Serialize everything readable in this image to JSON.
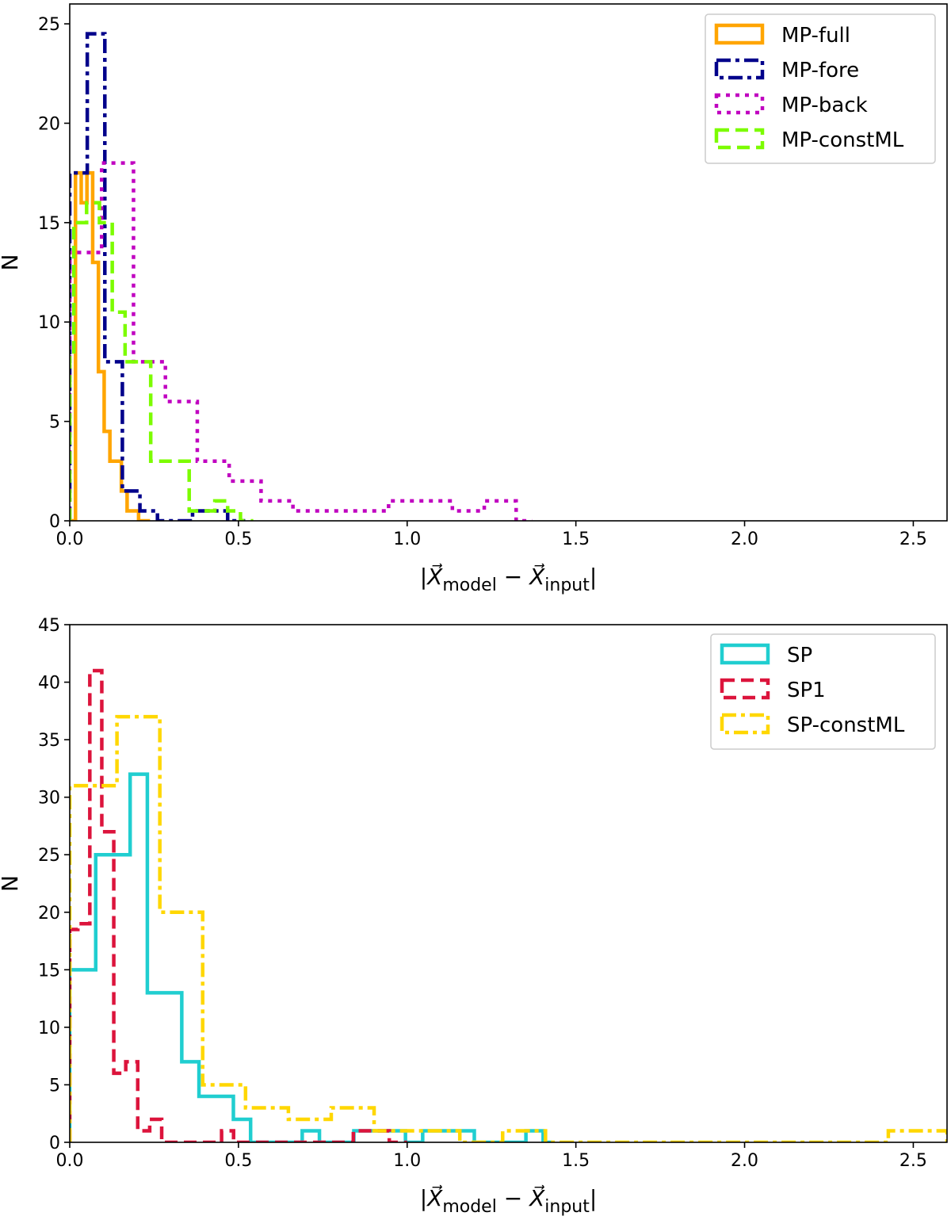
{
  "chart_data": [
    {
      "type": "histogram",
      "panel": "top",
      "xlabel": "|X_model − X_input|",
      "xlabel_parts": {
        "bar": "|",
        "vec": "X",
        "sub1": "model",
        "minus": "−",
        "sub2": "input"
      },
      "ylabel": "N",
      "xlim": [
        0,
        2.6
      ],
      "ylim": [
        0,
        26
      ],
      "xticks": [
        0.0,
        0.5,
        1.0,
        1.5,
        2.0,
        2.5
      ],
      "xtick_labels": [
        "0.0",
        "0.5",
        "1.0",
        "1.5",
        "2.0",
        "2.5"
      ],
      "yticks": [
        0,
        5,
        10,
        15,
        20,
        25
      ],
      "ytick_labels": [
        "0",
        "5",
        "10",
        "15",
        "20",
        "25"
      ],
      "legend_position": "top-right",
      "series": [
        {
          "name": "MP-full",
          "color": "#FFA500",
          "style": "solid",
          "edges": [
            0.0,
            0.017,
            0.034,
            0.051,
            0.068,
            0.085,
            0.102,
            0.119,
            0.136,
            0.153,
            0.17,
            0.187,
            0.204,
            0.221,
            0.238
          ],
          "counts": [
            0,
            17.5,
            16,
            17.5,
            13,
            7.5,
            4.5,
            3,
            3,
            1.5,
            0.5,
            0.5,
            0,
            0
          ]
        },
        {
          "name": "MP-fore",
          "color": "#00008B",
          "style": "dashdot",
          "edges": [
            0.0,
            0.052,
            0.104,
            0.156,
            0.208,
            0.26,
            0.312,
            0.364,
            0.416,
            0.468,
            0.52
          ],
          "counts": [
            17.5,
            24.5,
            8,
            1.5,
            0.5,
            0,
            0,
            0.5,
            0.5,
            0
          ],
          "extra_bars": [
            {
              "start": 0.0,
              "end": 0.012,
              "value": 17.5
            }
          ]
        },
        {
          "name": "MP-back",
          "color": "#C000C0",
          "style": "dotted",
          "edges": [
            0.0,
            0.0945,
            0.189,
            0.2835,
            0.378,
            0.4725,
            0.567,
            0.6615,
            0.756,
            0.8505,
            0.945,
            1.0395,
            1.134,
            1.2285,
            1.323,
            1.37
          ],
          "counts": [
            13.5,
            18,
            8,
            6,
            3,
            2,
            1,
            0.5,
            0.5,
            0.5,
            1,
            1,
            0.5,
            1,
            0
          ]
        },
        {
          "name": "MP-constML",
          "color": "#7CFC00",
          "style": "dashed",
          "edges": [
            0.0,
            0.012,
            0.05,
            0.088,
            0.126,
            0.164,
            0.202,
            0.24,
            0.278,
            0.316,
            0.354,
            0.392,
            0.43,
            0.468,
            0.506,
            0.544
          ],
          "counts": [
            8.5,
            15,
            16,
            15,
            10.5,
            8,
            8,
            3,
            3,
            3,
            0.5,
            0.5,
            1,
            0.5,
            0
          ],
          "extra_bars": [
            {
              "start": 0.0,
              "end": 0.012,
              "value": 8.5
            }
          ]
        }
      ]
    },
    {
      "type": "histogram",
      "panel": "bottom",
      "xlabel": "|X_model − X_input|",
      "xlabel_parts": {
        "bar": "|",
        "vec": "X",
        "sub1": "model",
        "minus": "−",
        "sub2": "input"
      },
      "ylabel": "N",
      "xlim": [
        0,
        2.6
      ],
      "ylim": [
        0,
        45
      ],
      "xticks": [
        0.0,
        0.5,
        1.0,
        1.5,
        2.0,
        2.5
      ],
      "xtick_labels": [
        "0.0",
        "0.5",
        "1.0",
        "1.5",
        "2.0",
        "2.5"
      ],
      "yticks": [
        0,
        5,
        10,
        15,
        20,
        25,
        30,
        35,
        40,
        45
      ],
      "ytick_labels": [
        "0",
        "5",
        "10",
        "15",
        "20",
        "25",
        "30",
        "35",
        "40",
        "45"
      ],
      "legend_position": "top-right",
      "series": [
        {
          "name": "SP",
          "color": "#20CED0",
          "style": "solid",
          "edges": [
            0.0,
            0.026,
            0.077,
            0.128,
            0.179,
            0.23,
            0.281,
            0.332,
            0.383,
            0.434,
            0.485,
            0.536,
            0.587,
            0.638,
            0.689,
            0.74,
            0.791,
            0.842,
            0.893,
            0.944,
            0.995,
            1.046,
            1.097,
            1.148,
            1.199,
            1.25,
            1.301,
            1.352,
            1.403,
            1.43
          ],
          "counts": [
            15,
            15,
            25,
            25,
            32,
            13,
            13,
            7,
            4,
            4,
            2,
            0,
            0,
            0,
            1,
            0,
            0,
            1,
            1,
            1,
            0,
            1,
            1,
            1,
            0,
            0,
            0,
            1,
            0
          ]
        },
        {
          "name": "SP1",
          "color": "#DC143C",
          "style": "dashed",
          "edges": [
            0.0,
            0.024,
            0.0595,
            0.095,
            0.1305,
            0.166,
            0.2015,
            0.237,
            0.2725,
            0.308,
            0.3435,
            0.379,
            0.4145,
            0.45,
            0.4855,
            0.521,
            0.5565,
            0.592,
            0.6275,
            0.663,
            0.6985,
            0.734,
            0.7695,
            0.805,
            0.8405,
            0.876,
            0.9115,
            0.947,
            0.9825,
            1.0
          ],
          "counts": [
            18.5,
            19,
            41,
            27,
            6,
            7,
            1,
            2,
            0,
            0,
            0,
            0,
            0,
            1,
            0,
            0,
            0,
            0,
            0,
            0,
            0,
            0,
            0,
            0,
            1,
            1,
            1,
            0,
            0
          ]
        },
        {
          "name": "SP-constML",
          "color": "#FFD700",
          "style": "dashdot",
          "edges": [
            0.0,
            0.013,
            0.14,
            0.267,
            0.394,
            0.521,
            0.648,
            0.775,
            0.902,
            1.029,
            1.156,
            1.283,
            1.41,
            1.537,
            1.664,
            1.791,
            1.918,
            2.045,
            2.172,
            2.299,
            2.426,
            2.553,
            2.6
          ],
          "counts": [
            31,
            31,
            37,
            20,
            5,
            3,
            2,
            3,
            1,
            1,
            0,
            1,
            0,
            0,
            0,
            0,
            0,
            0,
            0,
            0,
            1,
            1
          ]
        }
      ]
    }
  ]
}
